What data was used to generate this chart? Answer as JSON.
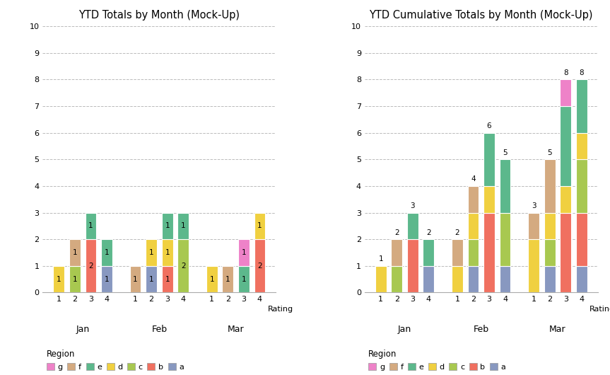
{
  "left_title": "YTD Totals by Month (Mock-Up)",
  "right_title": "YTD Cumulative Totals by Month (Mock-Up)",
  "months": [
    "Jan",
    "Feb",
    "Mar"
  ],
  "ratings": [
    1,
    2,
    3,
    4
  ],
  "region_colors": {
    "g": "#ee82c8",
    "f": "#d4aa80",
    "e": "#5cb88c",
    "d": "#f0d040",
    "c": "#a8c850",
    "b": "#f07060",
    "a": "#8898c0"
  },
  "left_data": {
    "Jan": {
      "1": {
        "d": 1
      },
      "2": {
        "f": 1,
        "c": 1
      },
      "3": {
        "e": 1,
        "b": 2
      },
      "4": {
        "e": 1,
        "a": 1
      }
    },
    "Feb": {
      "1": {
        "f": 1
      },
      "2": {
        "d": 1,
        "a": 1
      },
      "3": {
        "d": 1,
        "b": 1,
        "e": 1
      },
      "4": {
        "c": 2,
        "e": 1
      }
    },
    "Mar": {
      "1": {
        "d": 1
      },
      "2": {
        "f": 1
      },
      "3": {
        "g": 1,
        "e": 1
      },
      "4": {
        "b": 2,
        "d": 1
      }
    }
  },
  "ylim": [
    0,
    10
  ],
  "yticks": [
    0,
    1,
    2,
    3,
    4,
    5,
    6,
    7,
    8,
    9,
    10
  ],
  "background_color": "#ffffff",
  "grid_color": "#bbbbbb"
}
